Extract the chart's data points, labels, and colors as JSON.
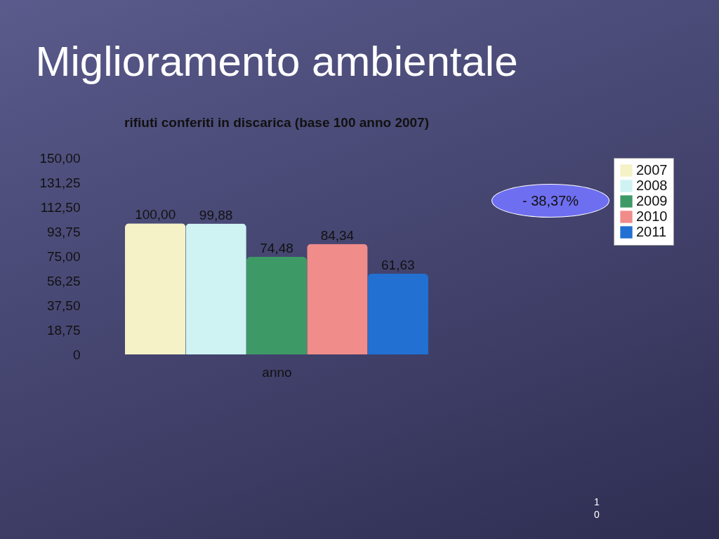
{
  "chart_data": {
    "type": "bar",
    "title": "Miglioramento ambientale",
    "subtitle": "rifiuti conferiti in discarica (base 100 anno 2007)",
    "xlabel": "anno",
    "categories": [
      null
    ],
    "series": [
      {
        "name": "2007",
        "color": "#f4f2c6",
        "values": [
          100
        ],
        "value_labels": [
          "100,00"
        ]
      },
      {
        "name": "2008",
        "color": "#cff3f3",
        "values": [
          99.88
        ],
        "value_labels": [
          "99,88"
        ]
      },
      {
        "name": "2009",
        "color": "#3d9a66",
        "values": [
          74.48
        ],
        "value_labels": [
          "74,48"
        ]
      },
      {
        "name": "2010",
        "color": "#f08c8a",
        "values": [
          84.34
        ],
        "value_labels": [
          "84,34"
        ]
      },
      {
        "name": "2011",
        "color": "#2170d2",
        "values": [
          61.63
        ],
        "value_labels": [
          "61,63"
        ]
      }
    ],
    "ylim": [
      0,
      150
    ],
    "yticks": [
      0,
      {
        "value": 18.75,
        "label": "18,75"
      },
      {
        "value": 37.5,
        "label": "37,50"
      },
      {
        "value": 56.25,
        "label": "56,25"
      },
      {
        "value": 75,
        "label": "75,00"
      },
      {
        "value": 93.75,
        "label": "93,75"
      },
      {
        "value": 112.5,
        "label": "112,50"
      },
      {
        "value": 131.25,
        "label": "131,25"
      },
      {
        "value": 150,
        "label": "150,00"
      }
    ],
    "legend": "right",
    "grid": false,
    "annotations": [
      "- 38,37%",
      "10"
    ]
  }
}
